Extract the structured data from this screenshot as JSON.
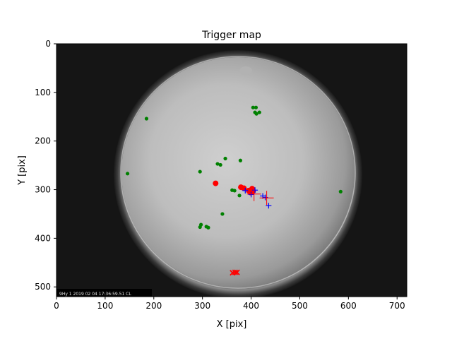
{
  "chart_data": {
    "type": "scatter",
    "title": "Trigger map",
    "xlabel": "X [pix]",
    "ylabel": "Y [pix]",
    "xlim": [
      0,
      720
    ],
    "ylim": [
      0,
      520
    ],
    "y_inverted": true,
    "x_ticks": [
      0,
      100,
      200,
      300,
      400,
      500,
      600,
      700
    ],
    "y_ticks": [
      0,
      100,
      200,
      300,
      400,
      500
    ],
    "background": "grayscale all-sky camera image (fisheye circular view)",
    "image_timestamp_text": "9Hy 1 2019 02 04 17:36:59.51 CL",
    "colors": {
      "green": "#008000",
      "red": "#ff0000",
      "blue": "#0000ff"
    },
    "series": [
      {
        "marker": "dot",
        "color": "green",
        "points": [
          [
            185,
            154
          ],
          [
            146,
            267
          ],
          [
            295,
            263
          ],
          [
            331,
            247
          ],
          [
            337,
            249
          ],
          [
            347,
            236
          ],
          [
            378,
            240
          ],
          [
            404,
            131
          ],
          [
            410,
            131
          ],
          [
            408,
            141
          ],
          [
            411,
            144
          ],
          [
            417,
            141
          ],
          [
            361,
            301
          ],
          [
            366,
            302
          ],
          [
            376,
            312
          ],
          [
            400,
            298
          ],
          [
            584,
            304
          ],
          [
            341,
            350
          ],
          [
            297,
            372
          ],
          [
            295,
            377
          ],
          [
            308,
            376
          ],
          [
            312,
            378
          ]
        ]
      },
      {
        "marker": "filled-circle",
        "color": "red",
        "points": [
          [
            327,
            287
          ],
          [
            379,
            295
          ],
          [
            385,
            297
          ],
          [
            395,
            302
          ],
          [
            399,
            306
          ],
          [
            402,
            298
          ],
          [
            404,
            303
          ]
        ]
      },
      {
        "marker": "plus",
        "color": "blue",
        "points": [
          [
            408,
            301
          ],
          [
            424,
            313
          ],
          [
            429,
            316
          ],
          [
            436,
            333
          ],
          [
            388,
            302
          ],
          [
            400,
            310
          ]
        ]
      },
      {
        "marker": "x",
        "color": "red",
        "points": [
          [
            362,
            471
          ],
          [
            367,
            470
          ],
          [
            371,
            470
          ]
        ]
      },
      {
        "marker": "large-plus",
        "color": "red",
        "points": [
          [
            406,
            309
          ],
          [
            432,
            317
          ]
        ]
      }
    ]
  }
}
